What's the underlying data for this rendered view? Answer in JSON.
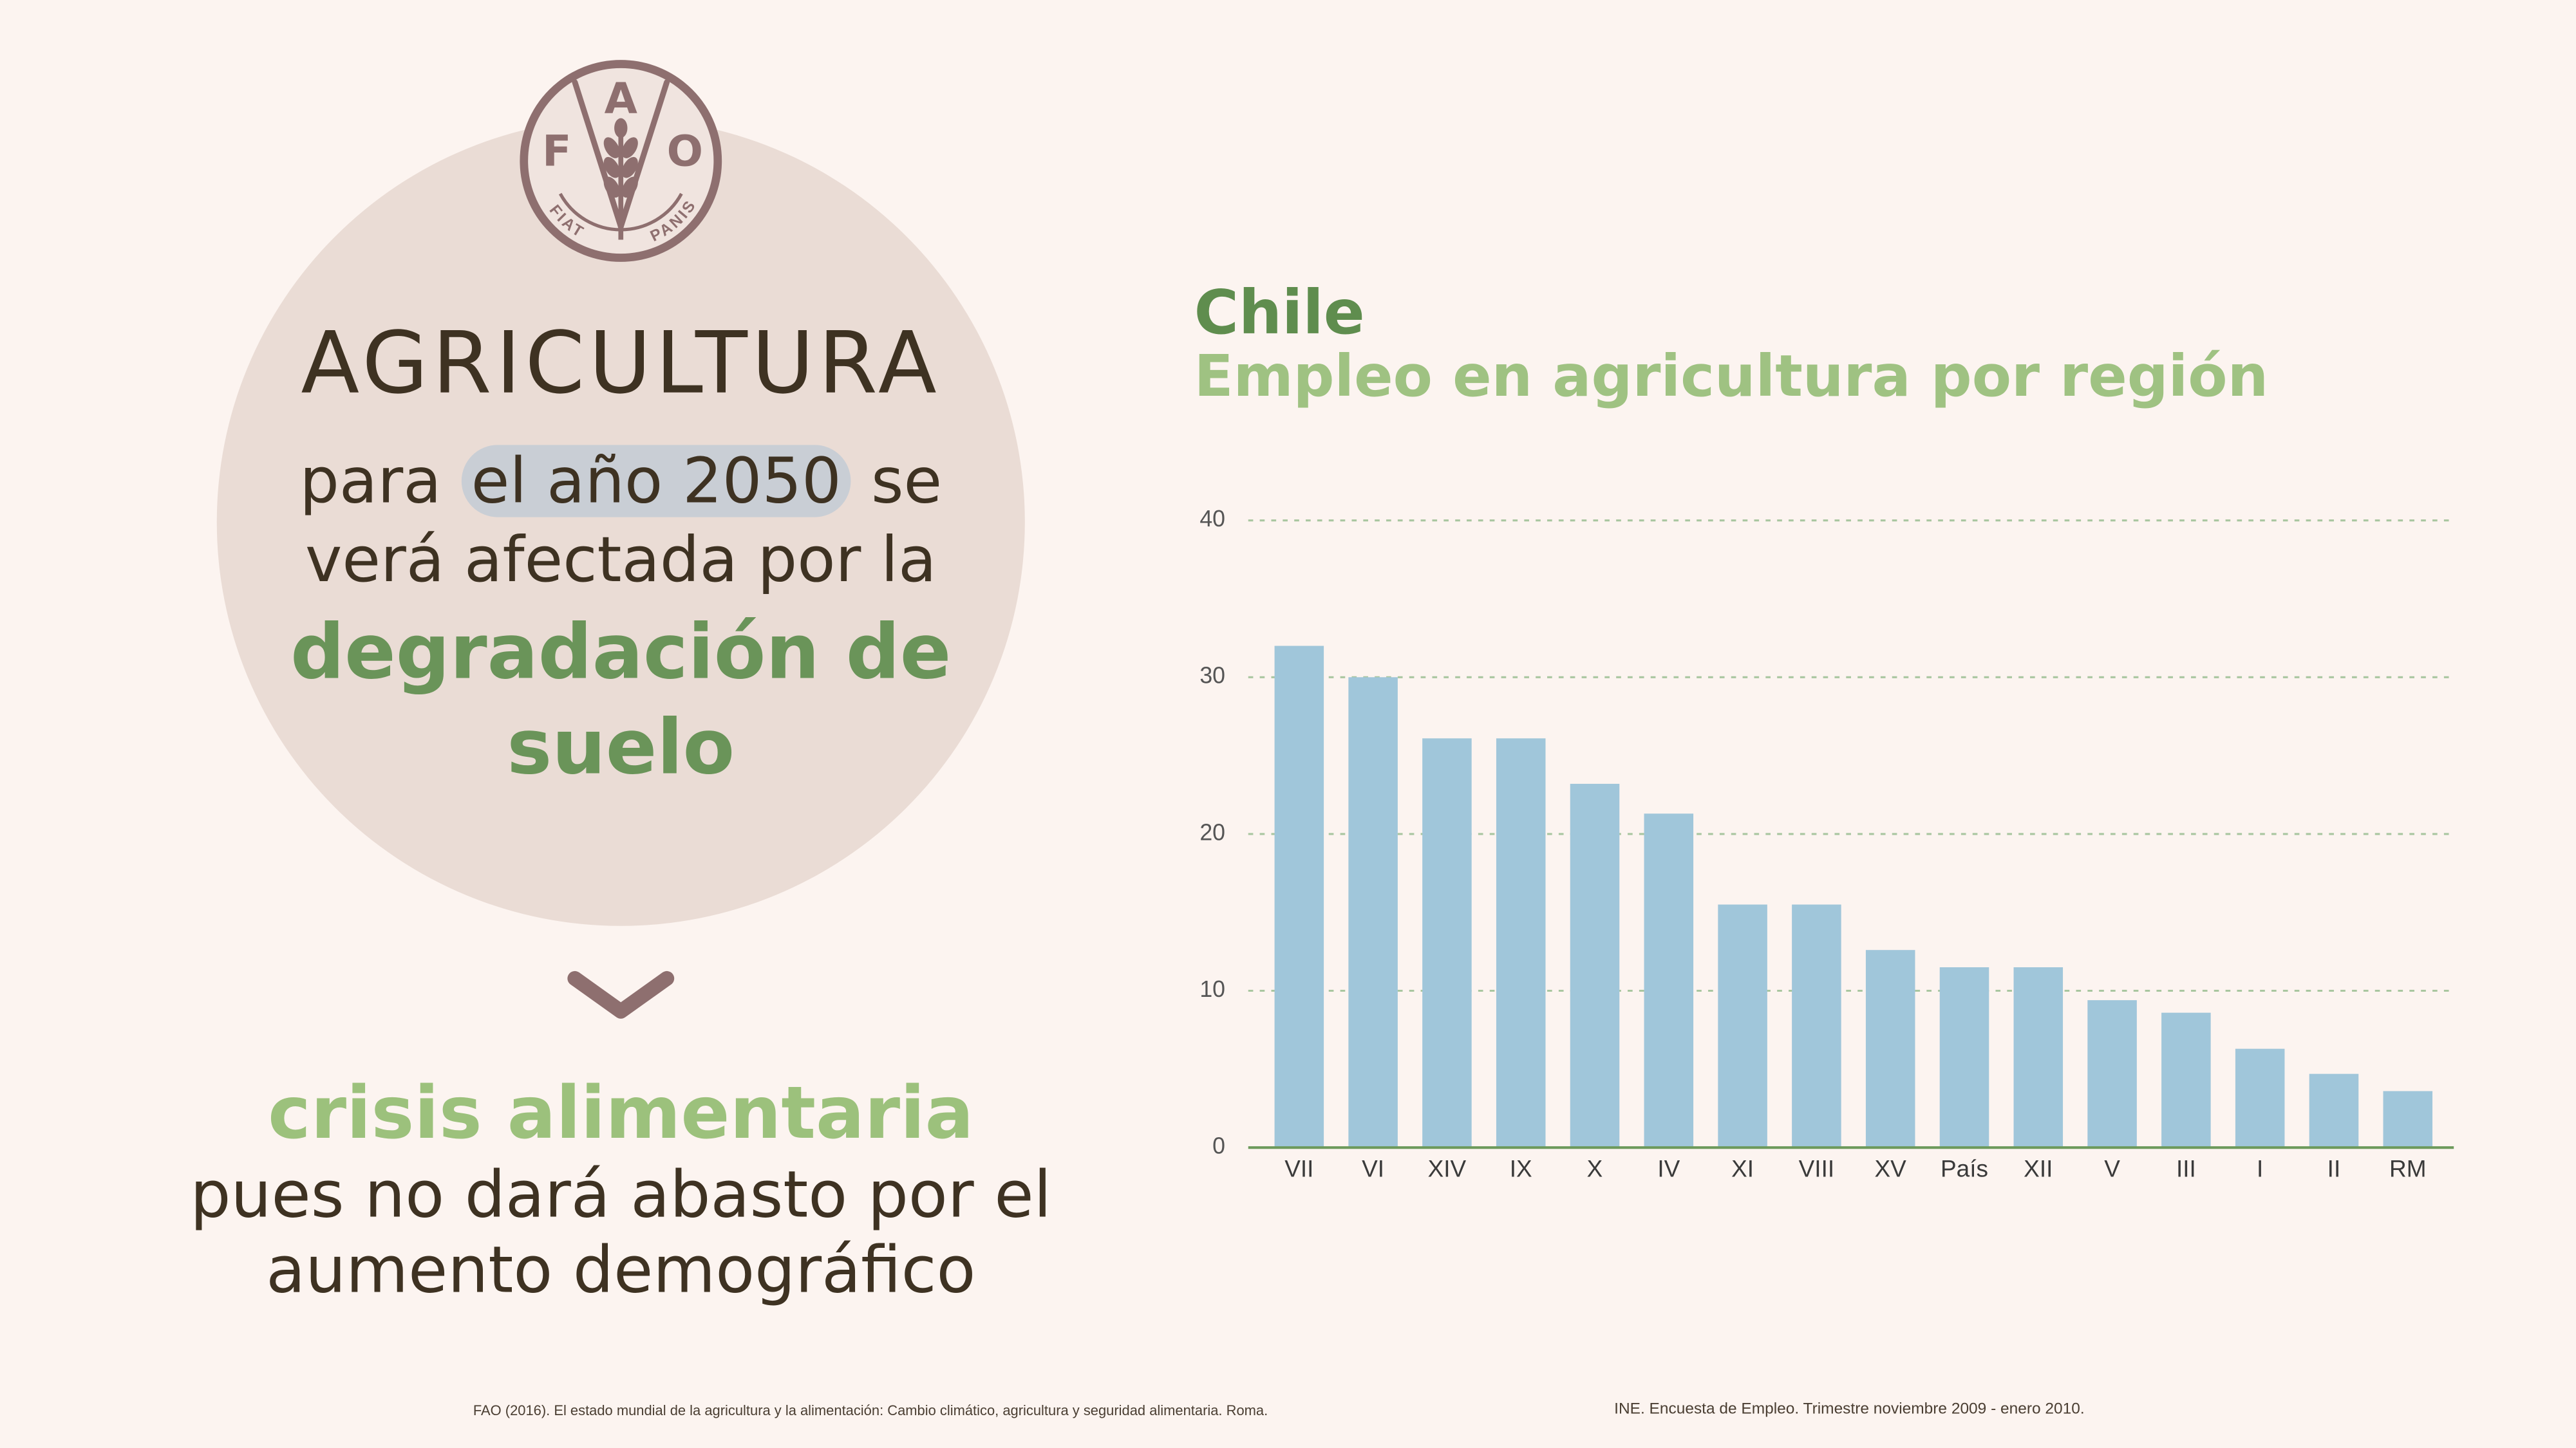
{
  "logo": {
    "letter_left": "F",
    "letter_top": "A",
    "letter_right": "O",
    "motto_left": "FIAT",
    "motto_right": "PANIS"
  },
  "headline": {
    "title": "AGRICULTURA",
    "line1_start": "para",
    "line1_highlight": "el año 2050",
    "line1_end": "se",
    "line2": "verá afectada por la",
    "emphasis_1": "degradación de",
    "emphasis_2": "suelo"
  },
  "consequence": {
    "headline": "crisis alimentaria",
    "line1": "pues no dará abasto por el",
    "line2": "aumento demográfico"
  },
  "icons": {
    "logo": "fao-logo",
    "arrow": "chevron-down-icon"
  },
  "colors": {
    "background": "#fcf4f0",
    "circle": "#eadcd5",
    "text": "#3e3222",
    "accent_green": "#6a9459",
    "light_green": "#9cc17c",
    "mauve": "#8e6f6f",
    "highlight": "#c9ced5",
    "grid": "#a9c6a0",
    "axis": "#6d9a5c"
  },
  "chart_data": {
    "type": "bar",
    "title": "Chile",
    "subtitle": "Empleo en agricultura por región",
    "xlabel": "",
    "ylabel": "",
    "categories": [
      "VII",
      "VI",
      "XIV",
      "IX",
      "X",
      "IV",
      "XI",
      "VIII",
      "XV",
      "País",
      "XII",
      "V",
      "III",
      "I",
      "II",
      "RM"
    ],
    "values": [
      32,
      30,
      26.1,
      26.1,
      23.2,
      21.3,
      15.5,
      15.5,
      12.6,
      11.5,
      11.5,
      9.4,
      8.6,
      6.3,
      4.7,
      3.6
    ],
    "ylim": [
      0,
      40
    ],
    "yticks": [
      0,
      10,
      20,
      30,
      40
    ],
    "grid": true,
    "grid_style": "dashed",
    "legend": "none",
    "bar_color": "#a0c6da"
  },
  "sources": [
    "FAO (2016). El estado mundial de la agricultura y la alimentación: Cambio climático, agricultura y seguridad alimentaria. Roma.",
    "INE. Encuesta de Empleo. Trimestre noviembre 2009 - enero 2010."
  ]
}
